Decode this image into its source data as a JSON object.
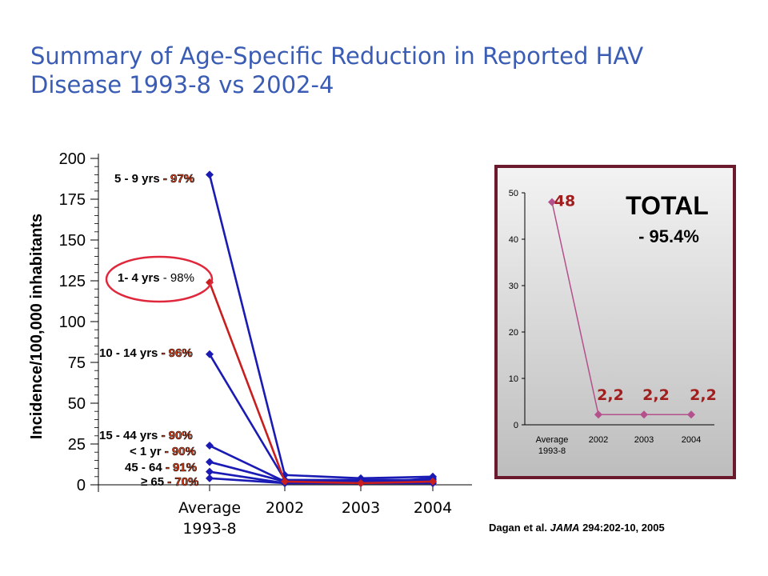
{
  "title": "Summary of Age-Specific Reduction in Reported HAV Disease 1993-8 vs 2002-4",
  "citation": {
    "authors": "Dagan et al.",
    "journal": "JAMA",
    "ref": "294:202-10, 2005"
  },
  "colors": {
    "title": "#3a5cb4",
    "series_blue": "#1a1ab4",
    "series_red": "#c81e1e",
    "percent_label": "#e8461e",
    "highlight_circle": "#e0283c",
    "inset_border": "#6b1a2e",
    "inset_line": "#b4508c",
    "inset_value": "#a01e1e"
  },
  "chart_data": [
    {
      "type": "line",
      "title": "",
      "xlabel": "",
      "ylabel": "Incidence/100,000 inhabitants",
      "categories": [
        "Average 1993-8",
        "2002",
        "2003",
        "2004"
      ],
      "ylim": [
        0,
        200
      ],
      "yticks": [
        0,
        25,
        50,
        75,
        100,
        125,
        150,
        175,
        200
      ],
      "series": [
        {
          "name": "5 - 9 yrs",
          "reduction": "- 97%",
          "values": [
            190,
            6,
            4,
            5
          ],
          "color": "blue",
          "highlight": false
        },
        {
          "name": "1- 4 yrs",
          "reduction": "- 98%",
          "values": [
            124,
            2,
            1,
            2
          ],
          "color": "red",
          "highlight": true
        },
        {
          "name": "10 - 14 yrs",
          "reduction": "- 96%",
          "values": [
            80,
            3,
            3,
            3
          ],
          "color": "blue",
          "highlight": false
        },
        {
          "name": "15 - 44 yrs",
          "reduction": "- 90%",
          "values": [
            24,
            2,
            2,
            2
          ],
          "color": "blue",
          "highlight": false
        },
        {
          "name": "< 1 yr",
          "reduction": "- 90%",
          "values": [
            14,
            2,
            1,
            4
          ],
          "color": "blue",
          "highlight": false
        },
        {
          "name": "45 - 64",
          "reduction": "- 91%",
          "values": [
            8,
            1,
            1,
            1
          ],
          "color": "blue",
          "highlight": false
        },
        {
          "name": "≥ 65",
          "reduction": "- 70%",
          "values": [
            4,
            1,
            1,
            1
          ],
          "color": "blue",
          "highlight": false
        }
      ]
    },
    {
      "type": "line",
      "title": "TOTAL",
      "subtitle": "- 95.4%",
      "xlabel": "",
      "ylabel": "",
      "categories": [
        "Average 1993-8",
        "2002",
        "2003",
        "2004"
      ],
      "ylim": [
        0,
        50
      ],
      "yticks": [
        0,
        10,
        20,
        30,
        40,
        50
      ],
      "series": [
        {
          "values": [
            48,
            2.2,
            2.2,
            2.2
          ],
          "labels": [
            "48",
            "2,2",
            "2,2",
            "2,2"
          ]
        }
      ]
    }
  ]
}
